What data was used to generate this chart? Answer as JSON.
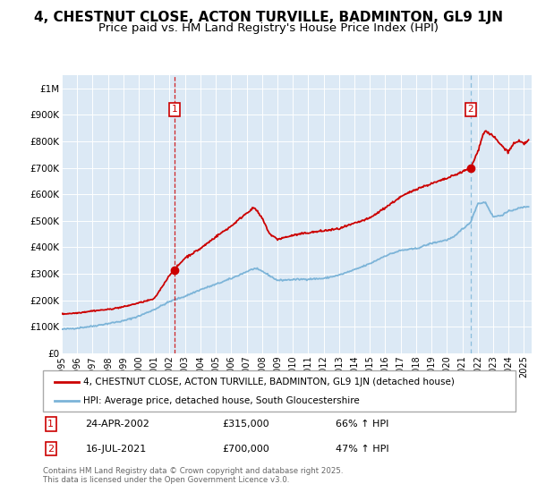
{
  "title": "4, CHESTNUT CLOSE, ACTON TURVILLE, BADMINTON, GL9 1JN",
  "subtitle": "Price paid vs. HM Land Registry's House Price Index (HPI)",
  "ylabel_ticks": [
    "£0",
    "£100K",
    "£200K",
    "£300K",
    "£400K",
    "£500K",
    "£600K",
    "£700K",
    "£800K",
    "£900K",
    "£1M"
  ],
  "ytick_values": [
    0,
    100000,
    200000,
    300000,
    400000,
    500000,
    600000,
    700000,
    800000,
    900000,
    1000000
  ],
  "ylim": [
    0,
    1050000
  ],
  "xlim_start": 1995.0,
  "xlim_end": 2025.5,
  "background_color": "#dce9f5",
  "red_line_color": "#cc0000",
  "blue_line_color": "#7cb4d8",
  "red_dash_color": "#cc0000",
  "blue_dash_color": "#7cb4d8",
  "marker1_x": 2002.31,
  "marker1_y": 315000,
  "marker2_x": 2021.54,
  "marker2_y": 700000,
  "legend_label1": "4, CHESTNUT CLOSE, ACTON TURVILLE, BADMINTON, GL9 1JN (detached house)",
  "legend_label2": "HPI: Average price, detached house, South Gloucestershire",
  "annotation1_date": "24-APR-2002",
  "annotation1_price": "£315,000",
  "annotation1_hpi": "66% ↑ HPI",
  "annotation2_date": "16-JUL-2021",
  "annotation2_price": "£700,000",
  "annotation2_hpi": "47% ↑ HPI",
  "footer": "Contains HM Land Registry data © Crown copyright and database right 2025.\nThis data is licensed under the Open Government Licence v3.0.",
  "title_fontsize": 11,
  "subtitle_fontsize": 9.5
}
